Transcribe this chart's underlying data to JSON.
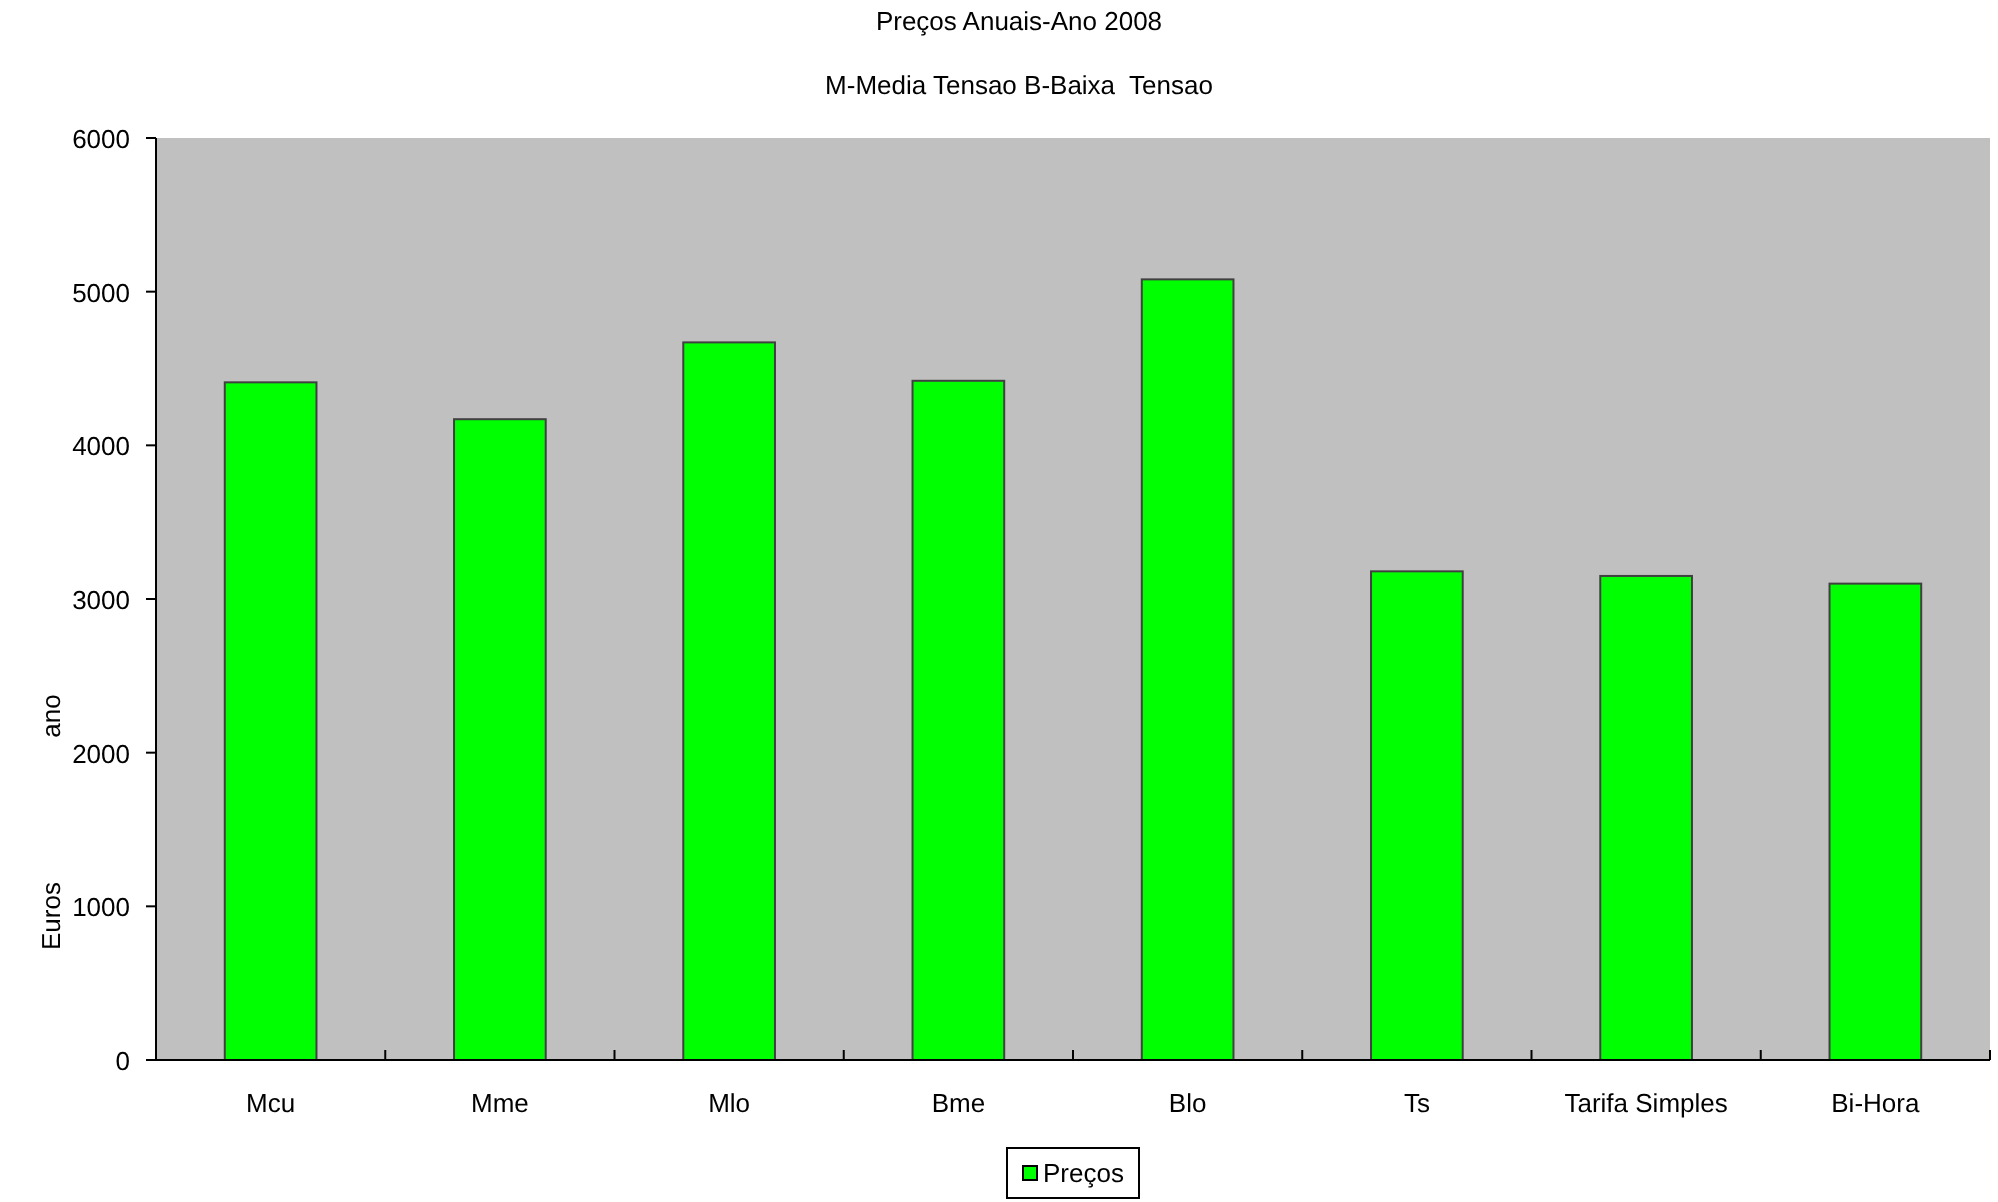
{
  "chart_data": {
    "type": "bar",
    "title": "Preços Anuais-Ano 2008",
    "subtitle": "M-Media Tensao B-Baixa  Tensao",
    "ylabel": "Euros ano",
    "categories": [
      "Mcu",
      "Mme",
      "Mlo",
      "Bme",
      "Blo",
      "Ts",
      "Tarifa Simples",
      "Bi-Hora"
    ],
    "series": [
      {
        "name": "Preços",
        "color": "#00ff00",
        "values": [
          4410,
          4170,
          4670,
          4420,
          5080,
          3180,
          3150,
          3100
        ]
      }
    ],
    "ylim": [
      0,
      6000
    ],
    "yticks": [
      0,
      1000,
      2000,
      3000,
      4000,
      5000,
      6000
    ],
    "grid": false,
    "legend": "bottom"
  }
}
